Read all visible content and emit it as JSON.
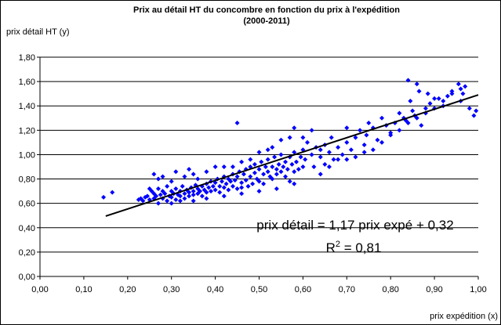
{
  "chart_data": {
    "type": "scatter",
    "title": "Prix au détail HT du concombre en fonction du prix à l'expédition",
    "subtitle": "(2000-2011)",
    "xlabel": "prix expédition (x)",
    "ylabel": "prix détail HT (y)",
    "xlim": [
      0,
      1
    ],
    "ylim": [
      0,
      1.8
    ],
    "xticks": [
      "0,00",
      "0,10",
      "0,20",
      "0,30",
      "0,40",
      "0,50",
      "0,60",
      "0,70",
      "0,80",
      "0,90",
      "1,00"
    ],
    "yticks": [
      "0,00",
      "0,20",
      "0,40",
      "0,60",
      "0,80",
      "1,00",
      "1,20",
      "1,40",
      "1,60",
      "1,80"
    ],
    "grid": "y-major",
    "marker_color": "#0000ff",
    "trendline": {
      "slope": 1.17,
      "intercept": 0.32,
      "x_range": [
        0.15,
        1.0
      ],
      "color": "#000000"
    },
    "equation": "prix détail = 1,17 prix expé + 0,32",
    "r2_prefix": "R",
    "r2_sup": "2",
    "r2_value": " = 0,81",
    "series": [
      {
        "points": [
          [
            0.145,
            0.65
          ],
          [
            0.165,
            0.69
          ],
          [
            0.225,
            0.63
          ],
          [
            0.23,
            0.64
          ],
          [
            0.235,
            0.62
          ],
          [
            0.24,
            0.65
          ],
          [
            0.245,
            0.66
          ],
          [
            0.25,
            0.63
          ],
          [
            0.25,
            0.72
          ],
          [
            0.255,
            0.7
          ],
          [
            0.26,
            0.68
          ],
          [
            0.26,
            0.64
          ],
          [
            0.265,
            0.66
          ],
          [
            0.27,
            0.72
          ],
          [
            0.27,
            0.6
          ],
          [
            0.275,
            0.67
          ],
          [
            0.28,
            0.7
          ],
          [
            0.28,
            0.64
          ],
          [
            0.285,
            0.68
          ],
          [
            0.29,
            0.74
          ],
          [
            0.29,
            0.62
          ],
          [
            0.295,
            0.66
          ],
          [
            0.3,
            0.7
          ],
          [
            0.3,
            0.65
          ],
          [
            0.305,
            0.68
          ],
          [
            0.31,
            0.72
          ],
          [
            0.31,
            0.63
          ],
          [
            0.315,
            0.67
          ],
          [
            0.32,
            0.7
          ],
          [
            0.32,
            0.66
          ],
          [
            0.325,
            0.74
          ],
          [
            0.33,
            0.68
          ],
          [
            0.33,
            0.64
          ],
          [
            0.335,
            0.71
          ],
          [
            0.34,
            0.69
          ],
          [
            0.34,
            0.66
          ],
          [
            0.345,
            0.73
          ],
          [
            0.35,
            0.7
          ],
          [
            0.35,
            0.67
          ],
          [
            0.355,
            0.75
          ],
          [
            0.36,
            0.72
          ],
          [
            0.36,
            0.68
          ],
          [
            0.365,
            0.7
          ],
          [
            0.37,
            0.74
          ],
          [
            0.37,
            0.66
          ],
          [
            0.375,
            0.71
          ],
          [
            0.38,
            0.76
          ],
          [
            0.38,
            0.69
          ],
          [
            0.385,
            0.73
          ],
          [
            0.39,
            0.78
          ],
          [
            0.39,
            0.7
          ],
          [
            0.395,
            0.74
          ],
          [
            0.4,
            0.77
          ],
          [
            0.4,
            0.71
          ],
          [
            0.405,
            0.8
          ],
          [
            0.41,
            0.74
          ],
          [
            0.41,
            0.69
          ],
          [
            0.415,
            0.78
          ],
          [
            0.42,
            0.82
          ],
          [
            0.42,
            0.73
          ],
          [
            0.425,
            0.76
          ],
          [
            0.43,
            0.8
          ],
          [
            0.43,
            0.71
          ],
          [
            0.435,
            0.78
          ],
          [
            0.44,
            0.84
          ],
          [
            0.44,
            0.74
          ],
          [
            0.445,
            0.79
          ],
          [
            0.45,
            0.82
          ],
          [
            0.45,
            0.72
          ],
          [
            0.455,
            0.86
          ],
          [
            0.46,
            0.77
          ],
          [
            0.46,
            0.73
          ],
          [
            0.465,
            0.84
          ],
          [
            0.47,
            0.79
          ],
          [
            0.47,
            0.88
          ],
          [
            0.475,
            0.74
          ],
          [
            0.48,
            0.82
          ],
          [
            0.48,
            0.9
          ],
          [
            0.485,
            0.76
          ],
          [
            0.49,
            0.85
          ],
          [
            0.49,
            0.92
          ],
          [
            0.495,
            0.8
          ],
          [
            0.5,
            0.88
          ],
          [
            0.5,
            0.78
          ],
          [
            0.505,
            0.94
          ],
          [
            0.51,
            0.84
          ],
          [
            0.51,
            0.76
          ],
          [
            0.515,
            0.9
          ],
          [
            0.52,
            0.86
          ],
          [
            0.52,
            0.96
          ],
          [
            0.525,
            0.82
          ],
          [
            0.53,
            0.9
          ],
          [
            0.53,
            0.8
          ],
          [
            0.535,
            0.98
          ],
          [
            0.54,
            0.88
          ],
          [
            0.54,
            0.84
          ],
          [
            0.545,
            0.92
          ],
          [
            0.55,
            0.86
          ],
          [
            0.55,
            1.0
          ],
          [
            0.555,
            0.9
          ],
          [
            0.56,
            0.82
          ],
          [
            0.56,
            0.94
          ],
          [
            0.565,
            0.88
          ],
          [
            0.57,
            0.98
          ],
          [
            0.57,
            0.78
          ],
          [
            0.575,
            0.92
          ],
          [
            0.58,
            0.86
          ],
          [
            0.58,
            1.02
          ],
          [
            0.585,
            0.94
          ],
          [
            0.59,
            0.88
          ],
          [
            0.595,
            0.98
          ],
          [
            0.6,
            0.9
          ],
          [
            0.6,
            1.04
          ],
          [
            0.605,
            0.96
          ],
          [
            0.61,
            1.1
          ],
          [
            0.62,
            1.0
          ],
          [
            0.625,
            0.9
          ],
          [
            0.63,
            1.06
          ],
          [
            0.64,
            0.98
          ],
          [
            0.65,
            1.08
          ],
          [
            0.65,
            0.92
          ],
          [
            0.66,
            1.02
          ],
          [
            0.665,
            1.14
          ],
          [
            0.67,
            0.96
          ],
          [
            0.68,
            1.06
          ],
          [
            0.69,
            1.0
          ],
          [
            0.7,
            1.1
          ],
          [
            0.7,
            1.22
          ],
          [
            0.71,
            1.04
          ],
          [
            0.72,
            1.14
          ],
          [
            0.73,
            1.2
          ],
          [
            0.74,
            1.08
          ],
          [
            0.745,
            1.16
          ],
          [
            0.75,
            1.26
          ],
          [
            0.76,
            1.22
          ],
          [
            0.77,
            1.12
          ],
          [
            0.78,
            1.3
          ],
          [
            0.79,
            1.24
          ],
          [
            0.8,
            1.18
          ],
          [
            0.81,
            1.26
          ],
          [
            0.82,
            1.34
          ],
          [
            0.83,
            1.3
          ],
          [
            0.835,
            1.28
          ],
          [
            0.84,
            1.61
          ],
          [
            0.845,
            1.44
          ],
          [
            0.85,
            1.36
          ],
          [
            0.855,
            1.32
          ],
          [
            0.86,
            1.58
          ],
          [
            0.865,
            1.52
          ],
          [
            0.87,
            1.24
          ],
          [
            0.88,
            1.34
          ],
          [
            0.885,
            1.5
          ],
          [
            0.89,
            1.42
          ],
          [
            0.9,
            1.38
          ],
          [
            0.91,
            1.46
          ],
          [
            0.92,
            1.4
          ],
          [
            0.93,
            1.48
          ],
          [
            0.94,
            1.52
          ],
          [
            0.955,
            1.58
          ],
          [
            0.96,
            1.44
          ],
          [
            0.965,
            1.5
          ],
          [
            0.97,
            1.56
          ],
          [
            0.98,
            1.38
          ],
          [
            0.99,
            1.32
          ],
          [
            0.995,
            1.36
          ],
          [
            0.26,
            0.84
          ],
          [
            0.27,
            0.8
          ],
          [
            0.28,
            0.82
          ],
          [
            0.3,
            0.78
          ],
          [
            0.31,
            0.86
          ],
          [
            0.33,
            0.82
          ],
          [
            0.34,
            0.88
          ],
          [
            0.35,
            0.84
          ],
          [
            0.36,
            0.8
          ],
          [
            0.38,
            0.86
          ],
          [
            0.4,
            0.9
          ],
          [
            0.42,
            0.9
          ],
          [
            0.44,
            0.9
          ],
          [
            0.46,
            0.94
          ],
          [
            0.48,
            0.96
          ],
          [
            0.5,
            1.02
          ],
          [
            0.52,
            1.04
          ],
          [
            0.53,
            1.06
          ],
          [
            0.55,
            1.12
          ],
          [
            0.57,
            1.14
          ],
          [
            0.45,
            1.26
          ],
          [
            0.58,
            1.22
          ],
          [
            0.6,
            1.14
          ],
          [
            0.62,
            1.2
          ],
          [
            0.64,
            1.04
          ],
          [
            0.66,
            0.9
          ],
          [
            0.68,
            0.96
          ],
          [
            0.3,
            0.6
          ],
          [
            0.32,
            0.62
          ],
          [
            0.35,
            0.62
          ],
          [
            0.38,
            0.64
          ],
          [
            0.42,
            0.66
          ],
          [
            0.46,
            0.68
          ],
          [
            0.5,
            0.7
          ],
          [
            0.54,
            0.72
          ],
          [
            0.58,
            0.76
          ],
          [
            0.64,
            0.84
          ],
          [
            0.7,
            0.96
          ],
          [
            0.72,
            0.98
          ],
          [
            0.74,
            1.02
          ],
          [
            0.76,
            1.04
          ],
          [
            0.78,
            1.1
          ],
          [
            0.8,
            1.16
          ],
          [
            0.82,
            1.2
          ],
          [
            0.84,
            1.26
          ],
          [
            0.86,
            1.3
          ],
          [
            0.88,
            1.38
          ],
          [
            0.9,
            1.46
          ],
          [
            0.92,
            1.44
          ],
          [
            0.94,
            1.5
          ],
          [
            0.96,
            1.54
          ]
        ]
      }
    ]
  }
}
